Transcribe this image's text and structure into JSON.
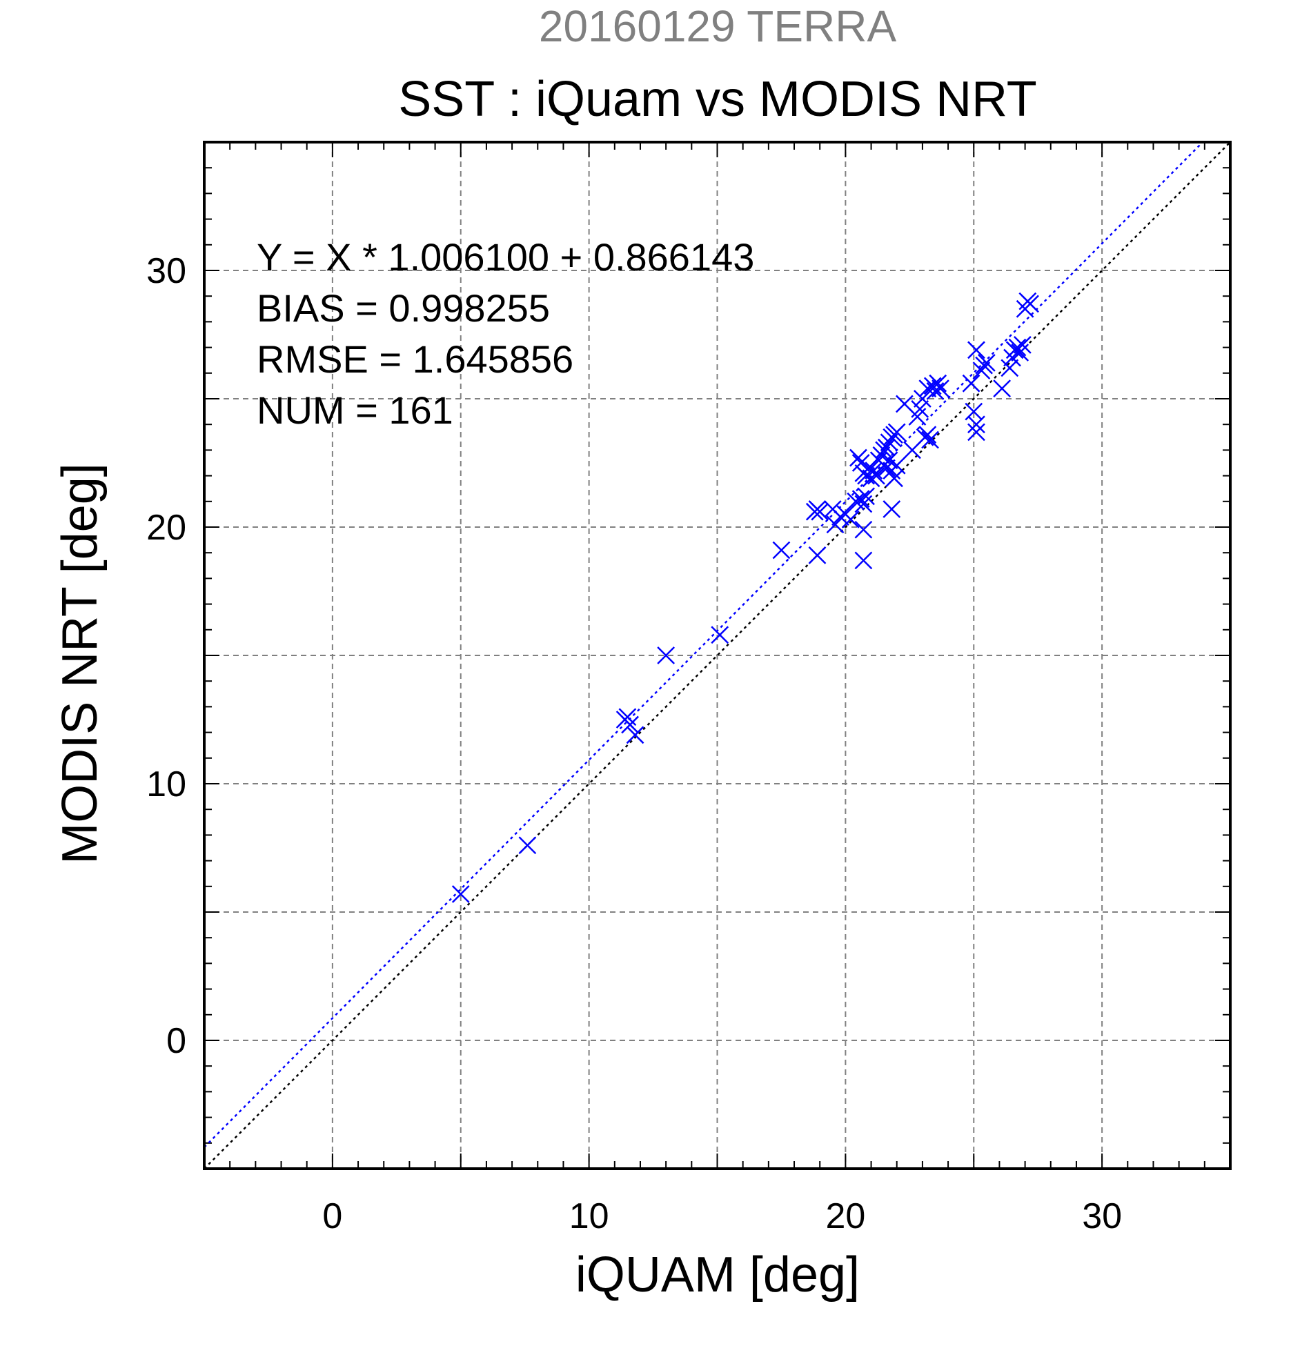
{
  "chart_data": {
    "type": "scatter",
    "title": "20160129 TERRA",
    "subtitle": "SST : iQuam vs MODIS NRT",
    "xlabel": "iQUAM [deg]",
    "ylabel": "MODIS NRT [deg]",
    "xlim": [
      -5,
      35
    ],
    "ylim": [
      -5,
      35
    ],
    "xticks": [
      0,
      10,
      20,
      30
    ],
    "yticks": [
      0,
      10,
      20,
      30
    ],
    "grid": true,
    "annotations": [
      "Y = X * 1.006100 + 0.866143",
      "BIAS = 0.998255",
      "RMSE = 1.645856",
      "NUM = 161"
    ],
    "colors": {
      "title": "#808080",
      "series": "#0000ff",
      "identity": "#000000",
      "grid": "#808080"
    },
    "fit": {
      "slope": 1.0061,
      "intercept": 0.866143
    },
    "identity_line": true,
    "series": [
      {
        "marker": "x",
        "points": [
          [
            5.0,
            5.7
          ],
          [
            7.6,
            7.6
          ],
          [
            11.4,
            12.5
          ],
          [
            11.5,
            12.6
          ],
          [
            11.6,
            12.3
          ],
          [
            11.8,
            11.9
          ],
          [
            13.0,
            15.0
          ],
          [
            15.1,
            15.8
          ],
          [
            17.5,
            19.1
          ],
          [
            18.8,
            20.6
          ],
          [
            18.9,
            20.7
          ],
          [
            19.0,
            20.6
          ],
          [
            18.9,
            18.9
          ],
          [
            19.5,
            20.7
          ],
          [
            19.6,
            20.1
          ],
          [
            19.8,
            20.4
          ],
          [
            20.0,
            20.5
          ],
          [
            20.2,
            20.3
          ],
          [
            20.4,
            21.0
          ],
          [
            20.6,
            21.1
          ],
          [
            20.7,
            20.9
          ],
          [
            20.7,
            19.9
          ],
          [
            20.7,
            18.7
          ],
          [
            20.8,
            21.2
          ],
          [
            20.5,
            22.7
          ],
          [
            20.6,
            22.5
          ],
          [
            20.7,
            22.1
          ],
          [
            20.8,
            22.0
          ],
          [
            20.9,
            22.3
          ],
          [
            21.0,
            21.9
          ],
          [
            21.1,
            22.2
          ],
          [
            21.2,
            22.0
          ],
          [
            21.3,
            22.6
          ],
          [
            21.4,
            22.8
          ],
          [
            21.5,
            23.0
          ],
          [
            21.6,
            23.1
          ],
          [
            21.7,
            23.3
          ],
          [
            21.8,
            23.5
          ],
          [
            21.9,
            23.6
          ],
          [
            22.0,
            23.7
          ],
          [
            21.5,
            22.4
          ],
          [
            21.6,
            22.3
          ],
          [
            21.7,
            22.6
          ],
          [
            21.8,
            22.2
          ],
          [
            21.9,
            21.9
          ],
          [
            22.0,
            22.4
          ],
          [
            21.8,
            20.7
          ],
          [
            22.3,
            24.8
          ],
          [
            22.6,
            23.0
          ],
          [
            22.8,
            24.3
          ],
          [
            22.9,
            24.6
          ],
          [
            23.0,
            25.0
          ],
          [
            23.2,
            25.4
          ],
          [
            23.1,
            23.5
          ],
          [
            23.2,
            23.6
          ],
          [
            23.3,
            23.4
          ],
          [
            23.4,
            25.5
          ],
          [
            23.5,
            25.3
          ],
          [
            23.6,
            25.6
          ],
          [
            23.7,
            25.4
          ],
          [
            24.9,
            25.6
          ],
          [
            25.0,
            24.5
          ],
          [
            25.1,
            24.0
          ],
          [
            25.1,
            23.7
          ],
          [
            25.1,
            26.9
          ],
          [
            25.3,
            26.1
          ],
          [
            25.4,
            26.3
          ],
          [
            25.5,
            26.4
          ],
          [
            26.1,
            25.4
          ],
          [
            26.4,
            26.2
          ],
          [
            26.5,
            26.6
          ],
          [
            26.6,
            26.9
          ],
          [
            26.7,
            27.0
          ],
          [
            26.8,
            26.8
          ],
          [
            26.9,
            27.1
          ],
          [
            27.0,
            28.5
          ],
          [
            27.1,
            28.8
          ],
          [
            27.2,
            28.7
          ]
        ]
      }
    ]
  }
}
